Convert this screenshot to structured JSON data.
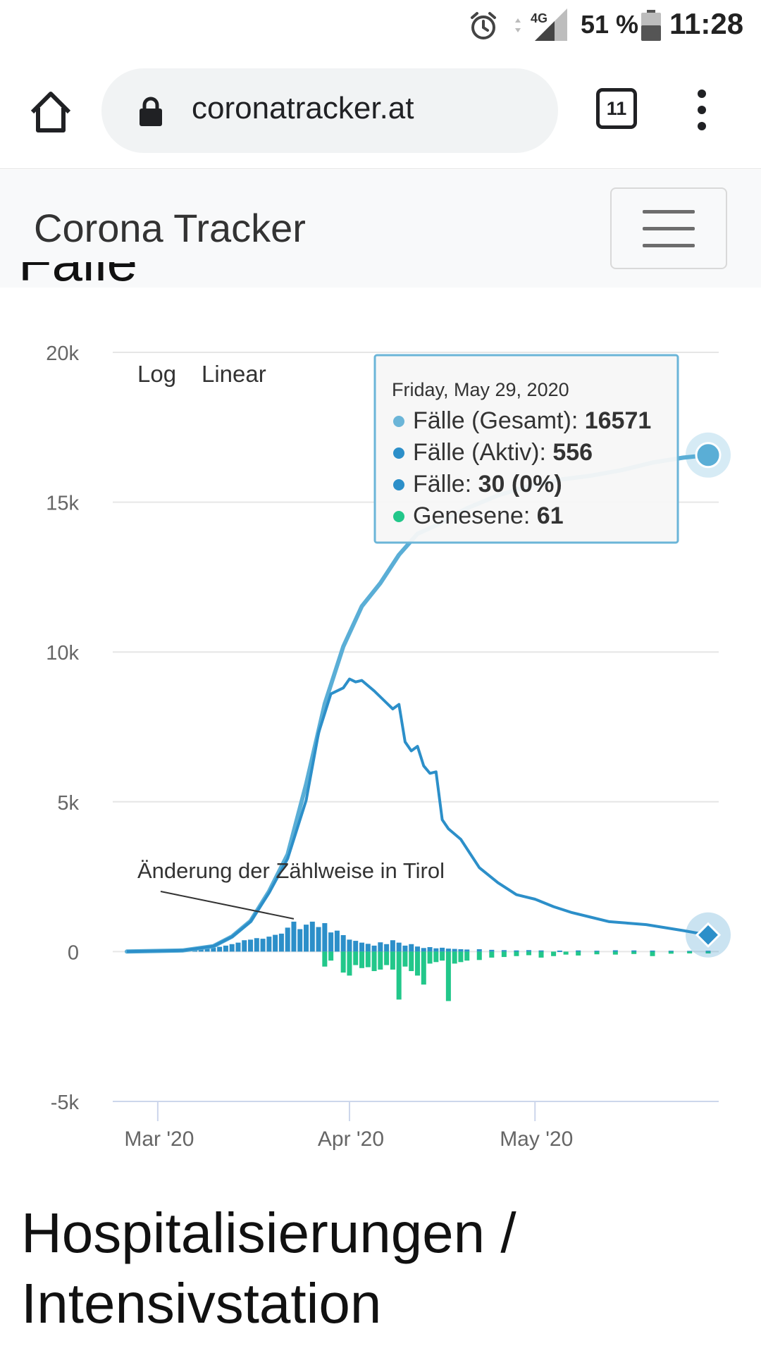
{
  "status_bar": {
    "network": "4G",
    "battery_percent": "51 %",
    "time": "11:28",
    "icons": [
      "alarm-icon",
      "signal-icon",
      "battery-icon"
    ]
  },
  "browser": {
    "url": "coronatracker.at",
    "tab_count": "11",
    "icons": [
      "home-icon",
      "lock-icon",
      "tabs-icon",
      "more-vert-icon"
    ]
  },
  "site": {
    "brand": "Corona Tracker",
    "menu_icon": "hamburger-icon"
  },
  "section": {
    "partial_title": "Fälle",
    "next_title_line1": "Hospitalisierungen /",
    "next_title_line2": "Intensivstation"
  },
  "chart_data": {
    "type": "line",
    "scale_buttons": [
      "Log",
      "Linear"
    ],
    "y_ticks": [
      "20k",
      "15k",
      "10k",
      "5k",
      "0",
      "-5k"
    ],
    "x_ticks": [
      "Mar '20",
      "Apr '20",
      "May '20"
    ],
    "ylim": [
      -5000,
      20000
    ],
    "annotation": "Änderung der Zählweise in Tirol",
    "tooltip": {
      "date": "Friday, May 29, 2020",
      "rows": [
        {
          "label": "Fälle (Gesamt): ",
          "value": "16571",
          "color": "#6bb5d8"
        },
        {
          "label": "Fälle (Aktiv): ",
          "value": "556",
          "color": "#2c8fc9"
        },
        {
          "label": "Fälle: ",
          "value": "30 (0%)",
          "color": "#2c8fc9"
        },
        {
          "label": "Genesene: ",
          "value": "61",
          "color": "#22c78a"
        }
      ]
    },
    "colors": {
      "total": "#5aaed6",
      "active": "#2c8fc9",
      "new": "#2c8fc9",
      "recovered": "#22c78a"
    },
    "x_start": "2020-02-25",
    "x_end": "2020-05-29",
    "series": [
      {
        "name": "Fälle (Gesamt)",
        "points": [
          [
            "2020-02-25",
            2
          ],
          [
            "2020-03-05",
            37
          ],
          [
            "2020-03-10",
            182
          ],
          [
            "2020-03-13",
            504
          ],
          [
            "2020-03-16",
            1018
          ],
          [
            "2020-03-19",
            2013
          ],
          [
            "2020-03-22",
            3244
          ],
          [
            "2020-03-25",
            5588
          ],
          [
            "2020-03-28",
            8271
          ],
          [
            "2020-03-31",
            10180
          ],
          [
            "2020-04-03",
            11525
          ],
          [
            "2020-04-06",
            12297
          ],
          [
            "2020-04-09",
            13244
          ],
          [
            "2020-04-12",
            13945
          ],
          [
            "2020-04-15",
            14226
          ],
          [
            "2020-04-20",
            14795
          ],
          [
            "2020-04-25",
            15225
          ],
          [
            "2020-04-30",
            15531
          ],
          [
            "2020-05-05",
            15752
          ],
          [
            "2020-05-10",
            15882
          ],
          [
            "2020-05-15",
            16068
          ],
          [
            "2020-05-20",
            16321
          ],
          [
            "2020-05-25",
            16486
          ],
          [
            "2020-05-29",
            16571
          ]
        ]
      },
      {
        "name": "Fälle (Aktiv)",
        "points": [
          [
            "2020-02-25",
            2
          ],
          [
            "2020-03-05",
            37
          ],
          [
            "2020-03-10",
            180
          ],
          [
            "2020-03-13",
            495
          ],
          [
            "2020-03-16",
            1000
          ],
          [
            "2020-03-19",
            1960
          ],
          [
            "2020-03-22",
            3100
          ],
          [
            "2020-03-25",
            5050
          ],
          [
            "2020-03-27",
            7300
          ],
          [
            "2020-03-29",
            8600
          ],
          [
            "2020-03-31",
            8800
          ],
          [
            "2020-04-01",
            9100
          ],
          [
            "2020-04-02",
            9000
          ],
          [
            "2020-04-03",
            9050
          ],
          [
            "2020-04-05",
            8700
          ],
          [
            "2020-04-07",
            8300
          ],
          [
            "2020-04-08",
            8100
          ],
          [
            "2020-04-09",
            8250
          ],
          [
            "2020-04-10",
            7000
          ],
          [
            "2020-04-11",
            6700
          ],
          [
            "2020-04-12",
            6850
          ],
          [
            "2020-04-13",
            6200
          ],
          [
            "2020-04-14",
            5950
          ],
          [
            "2020-04-15",
            6000
          ],
          [
            "2020-04-16",
            4400
          ],
          [
            "2020-04-17",
            4100
          ],
          [
            "2020-04-19",
            3750
          ],
          [
            "2020-04-22",
            2800
          ],
          [
            "2020-04-25",
            2300
          ],
          [
            "2020-04-28",
            1900
          ],
          [
            "2020-05-01",
            1750
          ],
          [
            "2020-05-04",
            1500
          ],
          [
            "2020-05-07",
            1300
          ],
          [
            "2020-05-10",
            1150
          ],
          [
            "2020-05-13",
            1000
          ],
          [
            "2020-05-16",
            950
          ],
          [
            "2020-05-19",
            900
          ],
          [
            "2020-05-22",
            800
          ],
          [
            "2020-05-25",
            700
          ],
          [
            "2020-05-29",
            556
          ]
        ]
      },
      {
        "name": "Fälle",
        "points": [
          [
            "2020-03-07",
            60
          ],
          [
            "2020-03-08",
            80
          ],
          [
            "2020-03-09",
            110
          ],
          [
            "2020-03-10",
            130
          ],
          [
            "2020-03-11",
            160
          ],
          [
            "2020-03-12",
            200
          ],
          [
            "2020-03-13",
            250
          ],
          [
            "2020-03-14",
            300
          ],
          [
            "2020-03-15",
            380
          ],
          [
            "2020-03-16",
            400
          ],
          [
            "2020-03-17",
            450
          ],
          [
            "2020-03-18",
            430
          ],
          [
            "2020-03-19",
            500
          ],
          [
            "2020-03-20",
            560
          ],
          [
            "2020-03-21",
            600
          ],
          [
            "2020-03-22",
            800
          ],
          [
            "2020-03-23",
            1000
          ],
          [
            "2020-03-24",
            750
          ],
          [
            "2020-03-25",
            900
          ],
          [
            "2020-03-26",
            1000
          ],
          [
            "2020-03-27",
            820
          ],
          [
            "2020-03-28",
            950
          ],
          [
            "2020-03-29",
            640
          ],
          [
            "2020-03-30",
            700
          ],
          [
            "2020-03-31",
            550
          ],
          [
            "2020-04-01",
            400
          ],
          [
            "2020-04-02",
            360
          ],
          [
            "2020-04-03",
            300
          ],
          [
            "2020-04-04",
            260
          ],
          [
            "2020-04-05",
            200
          ],
          [
            "2020-04-06",
            310
          ],
          [
            "2020-04-07",
            250
          ],
          [
            "2020-04-08",
            380
          ],
          [
            "2020-04-09",
            300
          ],
          [
            "2020-04-10",
            200
          ],
          [
            "2020-04-11",
            250
          ],
          [
            "2020-04-12",
            170
          ],
          [
            "2020-04-13",
            120
          ],
          [
            "2020-04-14",
            150
          ],
          [
            "2020-04-15",
            110
          ],
          [
            "2020-04-16",
            130
          ],
          [
            "2020-04-17",
            100
          ],
          [
            "2020-04-18",
            90
          ],
          [
            "2020-04-19",
            80
          ],
          [
            "2020-04-20",
            70
          ],
          [
            "2020-04-22",
            80
          ],
          [
            "2020-04-24",
            60
          ],
          [
            "2020-04-26",
            50
          ],
          [
            "2020-04-28",
            40
          ],
          [
            "2020-04-30",
            50
          ],
          [
            "2020-05-02",
            40
          ],
          [
            "2020-05-05",
            35
          ],
          [
            "2020-05-08",
            40
          ],
          [
            "2020-05-11",
            30
          ],
          [
            "2020-05-14",
            45
          ],
          [
            "2020-05-17",
            40
          ],
          [
            "2020-05-20",
            35
          ],
          [
            "2020-05-23",
            30
          ],
          [
            "2020-05-26",
            25
          ],
          [
            "2020-05-29",
            30
          ]
        ]
      },
      {
        "name": "Genesene",
        "points": [
          [
            "2020-03-28",
            -500
          ],
          [
            "2020-03-29",
            -300
          ],
          [
            "2020-03-31",
            -700
          ],
          [
            "2020-04-01",
            -800
          ],
          [
            "2020-04-02",
            -450
          ],
          [
            "2020-04-03",
            -550
          ],
          [
            "2020-04-04",
            -520
          ],
          [
            "2020-04-05",
            -650
          ],
          [
            "2020-04-06",
            -600
          ],
          [
            "2020-04-07",
            -450
          ],
          [
            "2020-04-08",
            -600
          ],
          [
            "2020-04-09",
            -1600
          ],
          [
            "2020-04-10",
            -500
          ],
          [
            "2020-04-11",
            -650
          ],
          [
            "2020-04-12",
            -800
          ],
          [
            "2020-04-13",
            -1100
          ],
          [
            "2020-04-14",
            -400
          ],
          [
            "2020-04-15",
            -350
          ],
          [
            "2020-04-16",
            -300
          ],
          [
            "2020-04-17",
            -1650
          ],
          [
            "2020-04-18",
            -400
          ],
          [
            "2020-04-19",
            -350
          ],
          [
            "2020-04-20",
            -300
          ],
          [
            "2020-04-22",
            -280
          ],
          [
            "2020-04-24",
            -200
          ],
          [
            "2020-04-26",
            -180
          ],
          [
            "2020-04-28",
            -150
          ],
          [
            "2020-04-30",
            -120
          ],
          [
            "2020-05-02",
            -200
          ],
          [
            "2020-05-04",
            -150
          ],
          [
            "2020-05-06",
            -100
          ],
          [
            "2020-05-08",
            -130
          ],
          [
            "2020-05-11",
            -90
          ],
          [
            "2020-05-14",
            -100
          ],
          [
            "2020-05-17",
            -80
          ],
          [
            "2020-05-20",
            -150
          ],
          [
            "2020-05-23",
            -70
          ],
          [
            "2020-05-26",
            -60
          ],
          [
            "2020-05-29",
            -61
          ]
        ]
      }
    ]
  }
}
